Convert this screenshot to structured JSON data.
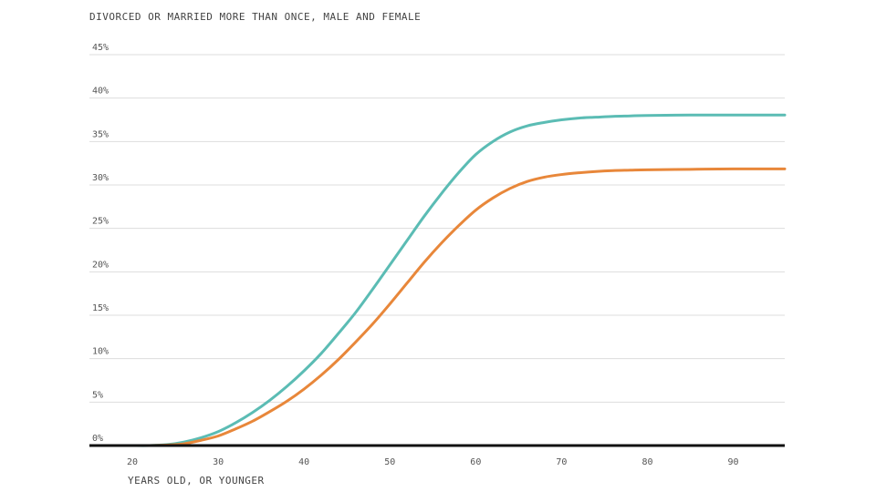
{
  "chart_data": {
    "type": "line",
    "title": "DIVORCED OR MARRIED MORE THAN ONCE, MALE AND FEMALE",
    "xlabel": "YEARS OLD, OR YOUNGER",
    "ylabel": "",
    "xlim": [
      15,
      96
    ],
    "ylim": [
      0,
      45
    ],
    "x_ticks": [
      20,
      30,
      40,
      50,
      60,
      70,
      80,
      90
    ],
    "x_tick_labels": [
      "20",
      "30",
      "40",
      "50",
      "60",
      "70",
      "80",
      "90"
    ],
    "y_ticks": [
      0,
      5,
      10,
      15,
      20,
      25,
      30,
      35,
      40,
      45
    ],
    "y_tick_labels": [
      "0%",
      "5%",
      "10%",
      "15%",
      "20%",
      "25%",
      "30%",
      "35%",
      "40%",
      "45%"
    ],
    "grid": true,
    "legend": "none",
    "series": [
      {
        "color": "#5bbcb4",
        "x": [
          20,
          22,
          24,
          26,
          28,
          30,
          32,
          34,
          36,
          38,
          40,
          42,
          44,
          46,
          48,
          50,
          52,
          54,
          56,
          58,
          60,
          62,
          64,
          66,
          68,
          70,
          72,
          74,
          76,
          78,
          80,
          85,
          90,
          96
        ],
        "y": [
          0,
          0,
          0.1,
          0.4,
          0.9,
          1.6,
          2.6,
          3.8,
          5.2,
          6.8,
          8.6,
          10.6,
          12.9,
          15.3,
          18.0,
          20.8,
          23.6,
          26.4,
          29.0,
          31.4,
          33.5,
          35.0,
          36.1,
          36.8,
          37.2,
          37.5,
          37.7,
          37.8,
          37.9,
          37.95,
          38.0,
          38.05,
          38.05,
          38.05
        ]
      },
      {
        "color": "#e8873a",
        "x": [
          20,
          22,
          24,
          26,
          28,
          30,
          32,
          34,
          36,
          38,
          40,
          42,
          44,
          46,
          48,
          50,
          52,
          54,
          56,
          58,
          60,
          62,
          64,
          66,
          68,
          70,
          72,
          74,
          76,
          78,
          80,
          85,
          90,
          96
        ],
        "y": [
          0,
          0,
          0.05,
          0.2,
          0.6,
          1.1,
          1.9,
          2.8,
          3.9,
          5.1,
          6.5,
          8.1,
          9.9,
          11.9,
          14.0,
          16.3,
          18.7,
          21.1,
          23.3,
          25.3,
          27.1,
          28.5,
          29.6,
          30.4,
          30.9,
          31.2,
          31.4,
          31.55,
          31.65,
          31.7,
          31.75,
          31.8,
          31.85,
          31.85
        ]
      }
    ]
  }
}
